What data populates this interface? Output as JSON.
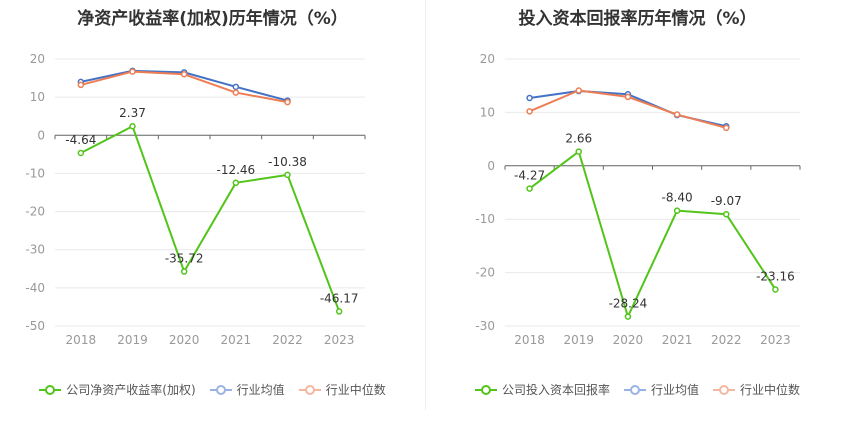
{
  "chart_data": [
    {
      "type": "line",
      "title": "净资产收益率(加权)历年情况（%）",
      "categories": [
        "2018",
        "2019",
        "2020",
        "2021",
        "2022",
        "2023"
      ],
      "y_ticks": [
        "20",
        "10",
        "0",
        "-10",
        "-20",
        "-30",
        "-40",
        "-50"
      ],
      "ylim": [
        -50,
        20
      ],
      "grid": true,
      "legend_position": "bottom",
      "series": [
        {
          "name": "公司净资产收益率(加权)",
          "values": [
            -4.64,
            2.37,
            -35.72,
            -12.46,
            -10.38,
            -46.17
          ],
          "labels": [
            "-4.64",
            "2.37",
            "-35.72",
            "-12.46",
            "-10.38",
            "-46.17"
          ],
          "color": "#52c41a"
        },
        {
          "name": "行业均值",
          "values": [
            14.0,
            16.9,
            16.5,
            12.7,
            9.1,
            null
          ],
          "color": "#4472c4"
        },
        {
          "name": "行业中位数",
          "values": [
            13.2,
            16.7,
            16.0,
            11.2,
            8.7,
            null
          ],
          "color": "#ed7d53"
        }
      ]
    },
    {
      "type": "line",
      "title": "投入资本回报率历年情况（%）",
      "categories": [
        "2018",
        "2019",
        "2020",
        "2021",
        "2022",
        "2023"
      ],
      "y_ticks": [
        "20",
        "10",
        "0",
        "-10",
        "-20",
        "-30"
      ],
      "ylim": [
        -30,
        20
      ],
      "grid": true,
      "legend_position": "bottom",
      "series": [
        {
          "name": "公司投入资本回报率",
          "values": [
            -4.27,
            2.66,
            -28.24,
            -8.4,
            -9.07,
            -23.16
          ],
          "labels": [
            "-4.27",
            "2.66",
            "-28.24",
            "-8.40",
            "-9.07",
            "-23.16"
          ],
          "color": "#52c41a"
        },
        {
          "name": "行业均值",
          "values": [
            12.7,
            14.0,
            13.4,
            9.5,
            7.4,
            null
          ],
          "color": "#4472c4"
        },
        {
          "name": "行业中位数",
          "values": [
            10.2,
            14.1,
            12.9,
            9.6,
            7.1,
            null
          ],
          "color": "#ed7d53"
        }
      ]
    }
  ]
}
